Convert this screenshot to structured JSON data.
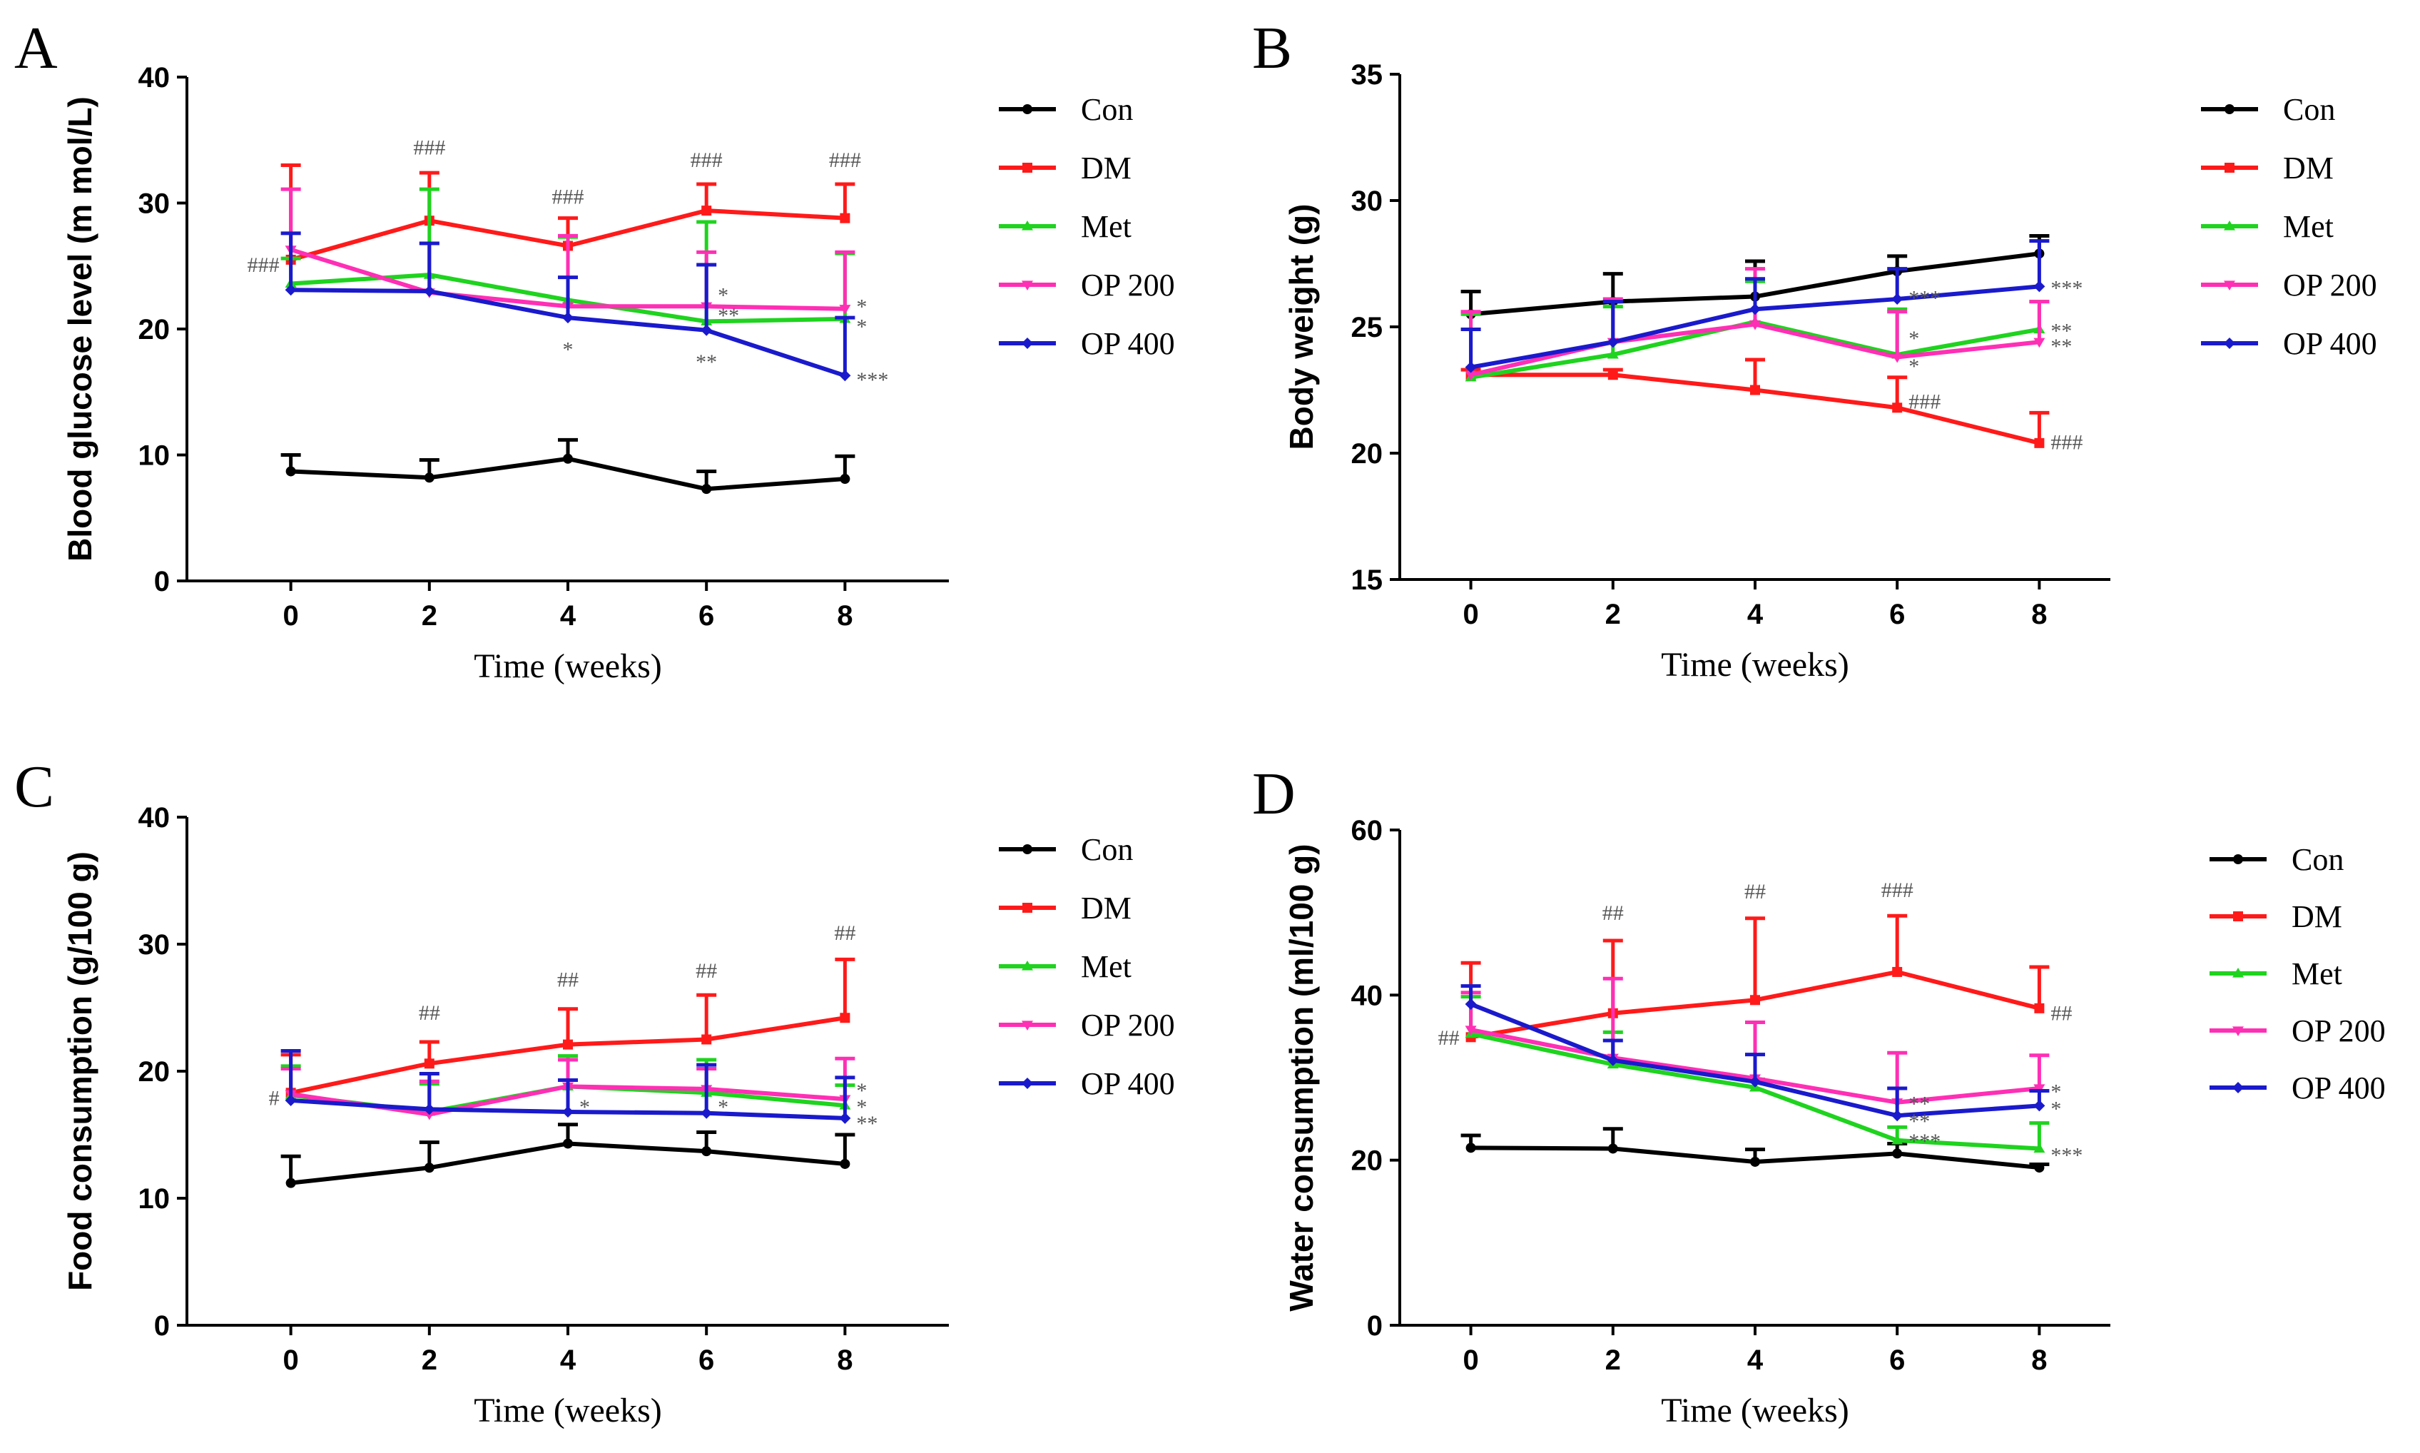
{
  "figure_colors": {
    "Con": "#000000",
    "DM": "#ff1a1a",
    "Met": "#1fd31f",
    "OP 200": "#ff2fb5",
    "OP 400": "#1a1acc"
  },
  "chart_data": [
    {
      "panel": "A",
      "type": "line",
      "xlabel": "Time (weeks)",
      "ylabel": "Blood glucose level (m mol/L)",
      "x": [
        0,
        2,
        4,
        6,
        8
      ],
      "xlim": [
        -1.5,
        9.5
      ],
      "ylim": [
        0,
        40
      ],
      "yticks": [
        "0",
        "10",
        "20",
        "30",
        "40"
      ],
      "xticks": [
        "0",
        "2",
        "4",
        "6",
        "8"
      ],
      "legend": [
        "Con",
        "DM",
        "Met",
        "OP 200",
        "OP 400"
      ],
      "series": [
        {
          "name": "Con",
          "values": [
            8.7,
            8.2,
            9.7,
            7.3,
            8.1
          ],
          "errors": [
            1.3,
            1.4,
            1.5,
            1.4,
            1.8
          ]
        },
        {
          "name": "DM",
          "values": [
            25.5,
            28.6,
            26.6,
            29.4,
            28.8
          ],
          "errors": [
            7.5,
            3.8,
            2.2,
            2.1,
            2.7
          ]
        },
        {
          "name": "Met",
          "values": [
            23.6,
            24.3,
            22.3,
            20.6,
            20.8
          ],
          "errors": [
            2.0,
            6.8,
            5.0,
            7.9,
            5.2
          ]
        },
        {
          "name": "OP 200",
          "values": [
            26.3,
            22.9,
            21.8,
            21.8,
            21.6
          ],
          "errors": [
            4.8,
            3.9,
            5.6,
            4.3,
            4.5
          ]
        },
        {
          "name": "OP 400",
          "values": [
            23.1,
            23.0,
            20.9,
            19.9,
            16.3
          ],
          "errors": [
            4.5,
            3.8,
            3.2,
            5.2,
            4.6
          ]
        }
      ],
      "annotations": [
        {
          "text": "###",
          "x": 0,
          "y": 25.2,
          "pos": "left"
        },
        {
          "text": "###",
          "x": 2,
          "y": 33.4,
          "pos": "above"
        },
        {
          "text": "###",
          "x": 4,
          "y": 29.5,
          "pos": "above"
        },
        {
          "text": "###",
          "x": 6,
          "y": 32.4,
          "pos": "above"
        },
        {
          "text": "###",
          "x": 8,
          "y": 32.4,
          "pos": "above"
        },
        {
          "text": "*",
          "x": 4,
          "y": 19.3,
          "pos": "below"
        },
        {
          "text": "*",
          "x": 6,
          "y": 22.8,
          "pos": "right"
        },
        {
          "text": "**",
          "x": 6,
          "y": 21.2,
          "pos": "right"
        },
        {
          "text": "**",
          "x": 6,
          "y": 18.3,
          "pos": "below"
        },
        {
          "text": "*",
          "x": 8,
          "y": 21.9,
          "pos": "right"
        },
        {
          "text": "*",
          "x": 8,
          "y": 20.3,
          "pos": "right"
        },
        {
          "text": "***",
          "x": 8,
          "y": 16.1,
          "pos": "right"
        }
      ]
    },
    {
      "panel": "B",
      "type": "line",
      "xlabel": "Time (weeks)",
      "ylabel": "Body weight (g)",
      "x": [
        0,
        2,
        4,
        6,
        8
      ],
      "xlim": [
        -1,
        9
      ],
      "ylim": [
        15,
        35
      ],
      "yticks": [
        "15",
        "20",
        "25",
        "30",
        "35"
      ],
      "xticks": [
        "0",
        "2",
        "4",
        "6",
        "8"
      ],
      "legend": [
        "Con",
        "DM",
        "Met",
        "OP 200",
        "OP 400"
      ],
      "series": [
        {
          "name": "Con",
          "values": [
            25.5,
            26.0,
            26.2,
            27.2,
            27.9
          ],
          "errors": [
            0.9,
            1.1,
            1.4,
            0.6,
            0.7
          ]
        },
        {
          "name": "DM",
          "values": [
            23.1,
            23.1,
            22.5,
            21.8,
            20.4
          ],
          "errors": [
            0.2,
            0.2,
            1.2,
            1.2,
            1.2
          ]
        },
        {
          "name": "Met",
          "values": [
            23.0,
            23.9,
            25.2,
            23.9,
            24.9
          ],
          "errors": [
            2.5,
            1.9,
            1.6,
            1.8,
            1.1
          ]
        },
        {
          "name": "OP 200",
          "values": [
            23.1,
            24.4,
            25.1,
            23.8,
            24.4
          ],
          "errors": [
            2.5,
            1.7,
            2.2,
            1.8,
            1.6
          ]
        },
        {
          "name": "OP 400",
          "values": [
            23.4,
            24.4,
            25.7,
            26.1,
            26.6
          ],
          "errors": [
            1.5,
            1.6,
            1.2,
            1.2,
            1.8
          ]
        }
      ],
      "annotations": [
        {
          "text": "***",
          "x": 6,
          "y": 26.2,
          "pos": "right"
        },
        {
          "text": "***",
          "x": 8,
          "y": 26.6,
          "pos": "right"
        },
        {
          "text": "*",
          "x": 6,
          "y": 24.6,
          "pos": "right"
        },
        {
          "text": "*",
          "x": 6,
          "y": 23.5,
          "pos": "right"
        },
        {
          "text": "**",
          "x": 8,
          "y": 24.9,
          "pos": "right"
        },
        {
          "text": "**",
          "x": 8,
          "y": 24.3,
          "pos": "right"
        },
        {
          "text": "###",
          "x": 6,
          "y": 22.1,
          "pos": "right"
        },
        {
          "text": "###",
          "x": 8,
          "y": 20.5,
          "pos": "right"
        }
      ]
    },
    {
      "panel": "C",
      "type": "line",
      "xlabel": "Time (weeks)",
      "ylabel": "Food consumption (g/100 g)",
      "x": [
        0,
        2,
        4,
        6,
        8
      ],
      "xlim": [
        -1.5,
        9.5
      ],
      "ylim": [
        0,
        40
      ],
      "yticks": [
        "0",
        "10",
        "20",
        "30",
        "40"
      ],
      "xticks": [
        "0",
        "2",
        "4",
        "6",
        "8"
      ],
      "legend": [
        "Con",
        "DM",
        "Met",
        "OP 200",
        "OP 400"
      ],
      "series": [
        {
          "name": "Con",
          "values": [
            11.2,
            12.4,
            14.3,
            13.7,
            12.7
          ],
          "errors": [
            2.1,
            2.0,
            1.5,
            1.5,
            2.3
          ]
        },
        {
          "name": "DM",
          "values": [
            18.3,
            20.6,
            22.1,
            22.5,
            24.2
          ],
          "errors": [
            3.0,
            1.7,
            2.8,
            3.5,
            4.6
          ]
        },
        {
          "name": "Met",
          "values": [
            18.1,
            16.8,
            18.8,
            18.3,
            17.3
          ],
          "errors": [
            2.3,
            2.2,
            2.4,
            2.6,
            1.6
          ]
        },
        {
          "name": "OP 200",
          "values": [
            18.2,
            16.6,
            18.8,
            18.6,
            17.8
          ],
          "errors": [
            2.0,
            2.6,
            2.1,
            1.6,
            3.2
          ]
        },
        {
          "name": "OP 400",
          "values": [
            17.7,
            17.0,
            16.8,
            16.7,
            16.3
          ],
          "errors": [
            3.9,
            2.8,
            2.5,
            3.8,
            3.2
          ]
        }
      ],
      "annotations": [
        {
          "text": "#",
          "x": 0,
          "y": 18.0,
          "pos": "left"
        },
        {
          "text": "##",
          "x": 2,
          "y": 23.6,
          "pos": "above"
        },
        {
          "text": "##",
          "x": 4,
          "y": 26.2,
          "pos": "above"
        },
        {
          "text": "##",
          "x": 6,
          "y": 26.9,
          "pos": "above"
        },
        {
          "text": "##",
          "x": 8,
          "y": 29.9,
          "pos": "above"
        },
        {
          "text": "*",
          "x": 4,
          "y": 17.3,
          "pos": "right"
        },
        {
          "text": "*",
          "x": 6,
          "y": 17.3,
          "pos": "right"
        },
        {
          "text": "*",
          "x": 8,
          "y": 18.6,
          "pos": "right"
        },
        {
          "text": "*",
          "x": 8,
          "y": 17.3,
          "pos": "right"
        },
        {
          "text": "**",
          "x": 8,
          "y": 16.0,
          "pos": "right"
        }
      ]
    },
    {
      "panel": "D",
      "type": "line",
      "xlabel": "Time (weeks)",
      "ylabel": "Water consumption (ml/100 g)",
      "x": [
        0,
        2,
        4,
        6,
        8
      ],
      "xlim": [
        -1,
        9
      ],
      "ylim": [
        0,
        60
      ],
      "yticks": [
        "0",
        "20",
        "40",
        "60"
      ],
      "xticks": [
        "0",
        "2",
        "4",
        "6",
        "8"
      ],
      "legend": [
        "Con",
        "DM",
        "Met",
        "OP 200",
        "OP 400"
      ],
      "series": [
        {
          "name": "Con",
          "values": [
            21.5,
            21.4,
            19.8,
            20.8,
            19.1
          ],
          "errors": [
            1.5,
            2.4,
            1.5,
            1.2,
            0.4
          ]
        },
        {
          "name": "DM",
          "values": [
            34.9,
            37.8,
            39.4,
            42.8,
            38.4
          ],
          "errors": [
            9.0,
            8.8,
            9.9,
            6.8,
            5.0
          ]
        },
        {
          "name": "Met",
          "values": [
            35.3,
            31.6,
            28.8,
            22.4,
            21.4
          ],
          "errors": [
            4.5,
            3.9,
            1.0,
            1.6,
            3.1
          ]
        },
        {
          "name": "OP 200",
          "values": [
            35.8,
            32.4,
            29.9,
            27.0,
            28.7
          ],
          "errors": [
            4.5,
            9.6,
            6.8,
            6.0,
            4.0
          ]
        },
        {
          "name": "OP 400",
          "values": [
            38.9,
            32.1,
            29.5,
            25.4,
            26.6
          ],
          "errors": [
            2.2,
            2.4,
            3.3,
            3.3,
            1.8
          ]
        }
      ],
      "annotations": [
        {
          "text": "##",
          "x": 0,
          "y": 35.0,
          "pos": "left"
        },
        {
          "text": "##",
          "x": 2,
          "y": 48.4,
          "pos": "above"
        },
        {
          "text": "##",
          "x": 4,
          "y": 51.0,
          "pos": "above"
        },
        {
          "text": "###",
          "x": 6,
          "y": 51.2,
          "pos": "above"
        },
        {
          "text": "##",
          "x": 8,
          "y": 38.0,
          "pos": "right"
        },
        {
          "text": "**",
          "x": 6,
          "y": 27.0,
          "pos": "right"
        },
        {
          "text": "**",
          "x": 6,
          "y": 24.9,
          "pos": "right"
        },
        {
          "text": "***",
          "x": 6,
          "y": 22.5,
          "pos": "right"
        },
        {
          "text": "*",
          "x": 8,
          "y": 28.5,
          "pos": "right"
        },
        {
          "text": "*",
          "x": 8,
          "y": 26.4,
          "pos": "right"
        },
        {
          "text": "***",
          "x": 8,
          "y": 20.8,
          "pos": "right"
        }
      ]
    }
  ]
}
